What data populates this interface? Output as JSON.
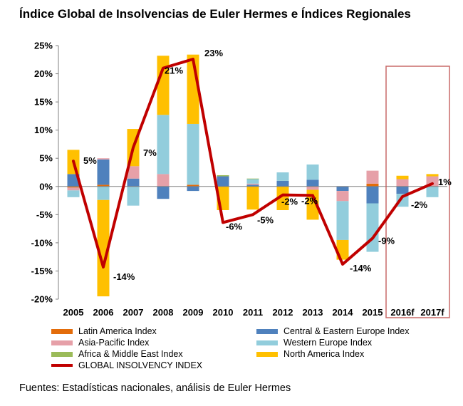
{
  "title": "Índice Global de Insolvencias de Euler Hermes e Índices Regionales",
  "source": "Fuentes: Estadísticas nacionales, análisis  de Euler Hermes",
  "chart_data": {
    "type": "bar",
    "stacked": true,
    "categories": [
      "2005",
      "2006",
      "2007",
      "2008",
      "2009",
      "2010",
      "2011",
      "2012",
      "2013",
      "2014",
      "2015",
      "2016f",
      "2017f"
    ],
    "ylim": [
      -20,
      25
    ],
    "yticks": [
      "-20%",
      "-15%",
      "-10%",
      "-5%",
      "0%",
      "5%",
      "10%",
      "15%",
      "20%",
      "25%"
    ],
    "ytick_values": [
      -20,
      -15,
      -10,
      -5,
      0,
      5,
      10,
      15,
      20,
      25
    ],
    "grid": false,
    "legend_position": "bottom",
    "highlight_box": [
      "2016f",
      "2017f"
    ],
    "series": [
      {
        "name": "Latin America Index",
        "color": "#E36C0A",
        "values": [
          -0.2,
          0.3,
          0,
          0,
          0.3,
          0,
          0,
          0,
          0,
          0,
          0.5,
          0,
          0
        ]
      },
      {
        "name": "Central & Eastern Europe Index",
        "color": "#4F81BD",
        "values": [
          2.2,
          4.5,
          1.4,
          -2.2,
          -0.8,
          1.8,
          0.3,
          1.0,
          1.2,
          -0.8,
          -3.0,
          -1.3,
          0
        ]
      },
      {
        "name": "Asia-Pacific Index",
        "color": "#E6A0A8",
        "values": [
          -0.5,
          0.2,
          2.2,
          2.2,
          0,
          0,
          0.2,
          0,
          -0.6,
          -1.8,
          2.3,
          1.3,
          1.8
        ]
      },
      {
        "name": "Western Europe Index",
        "color": "#92CDDC",
        "values": [
          -1.2,
          -2.4,
          -3.4,
          10.5,
          10.8,
          0,
          0.8,
          1.5,
          2.7,
          -6.9,
          -8.6,
          -2.3,
          -1.9
        ]
      },
      {
        "name": "Africa & Middle East Index",
        "color": "#9BBB59",
        "values": [
          0,
          0,
          0,
          0,
          0,
          0.2,
          0.1,
          0,
          0,
          0,
          0,
          0,
          0
        ]
      },
      {
        "name": "North America Index",
        "color": "#FFC000",
        "values": [
          4.3,
          -17.1,
          6.6,
          10.5,
          12.3,
          -4.2,
          -4.1,
          -4.2,
          -5.3,
          -3.5,
          0,
          0.6,
          0.4
        ]
      },
      {
        "name": "GLOBAL INSOLVENCY INDEX",
        "color": "#C00000",
        "kind": "line",
        "values": [
          4.5,
          -14.3,
          6.9,
          21.0,
          22.6,
          -6.4,
          -5.0,
          -1.5,
          -1.6,
          -13.8,
          -9.2,
          -1.8,
          0.5
        ]
      }
    ],
    "data_labels": [
      {
        "category": "2005",
        "text": "5%",
        "value": 4.5
      },
      {
        "category": "2006",
        "text": "-14%",
        "value": -14.3
      },
      {
        "category": "2007",
        "text": "7%",
        "value": 6.9
      },
      {
        "category": "2008",
        "text": "21%",
        "value": 21.0
      },
      {
        "category": "2009",
        "text": "23%",
        "value": 22.6
      },
      {
        "category": "2010",
        "text": "-6%",
        "value": -6.4
      },
      {
        "category": "2011",
        "text": "-5%",
        "value": -5.0
      },
      {
        "category": "2012",
        "text": "-2%",
        "value": -1.5
      },
      {
        "category": "2013",
        "text": "-2%",
        "value": -1.6
      },
      {
        "category": "2014",
        "text": "-14%",
        "value": -13.8
      },
      {
        "category": "2015",
        "text": "-9%",
        "value": -9.2
      },
      {
        "category": "2016f",
        "text": "-2%",
        "value": -1.8
      },
      {
        "category": "2017f",
        "text": "1%",
        "value": 0.5
      }
    ]
  }
}
